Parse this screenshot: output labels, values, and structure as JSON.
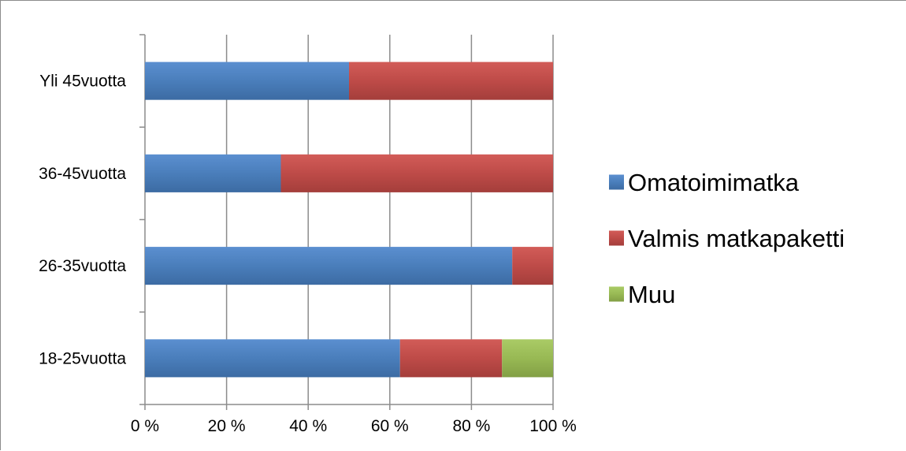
{
  "chart_data": {
    "type": "bar",
    "orientation": "horizontal",
    "stacked": "percent",
    "categories": [
      "Yli 45vuotta",
      "36-45vuotta",
      "26-35vuotta",
      "18-25vuotta"
    ],
    "series": [
      {
        "name": "Omatoimimatka",
        "color": "#4a7ebb",
        "values": [
          50,
          33.3,
          90,
          62.5
        ]
      },
      {
        "name": "Valmis matkapaketti",
        "color": "#be4b48",
        "values": [
          50,
          66.7,
          10,
          25
        ]
      },
      {
        "name": "Muu",
        "color": "#98b954",
        "values": [
          0,
          0,
          0,
          12.5
        ]
      }
    ],
    "x_ticks": [
      "0 %",
      "20 %",
      "40 %",
      "60 %",
      "80 %",
      "100 %"
    ],
    "xlim": [
      0,
      100
    ],
    "grid": "vertical",
    "legend": "right",
    "title": "",
    "xlabel": "",
    "ylabel": ""
  }
}
